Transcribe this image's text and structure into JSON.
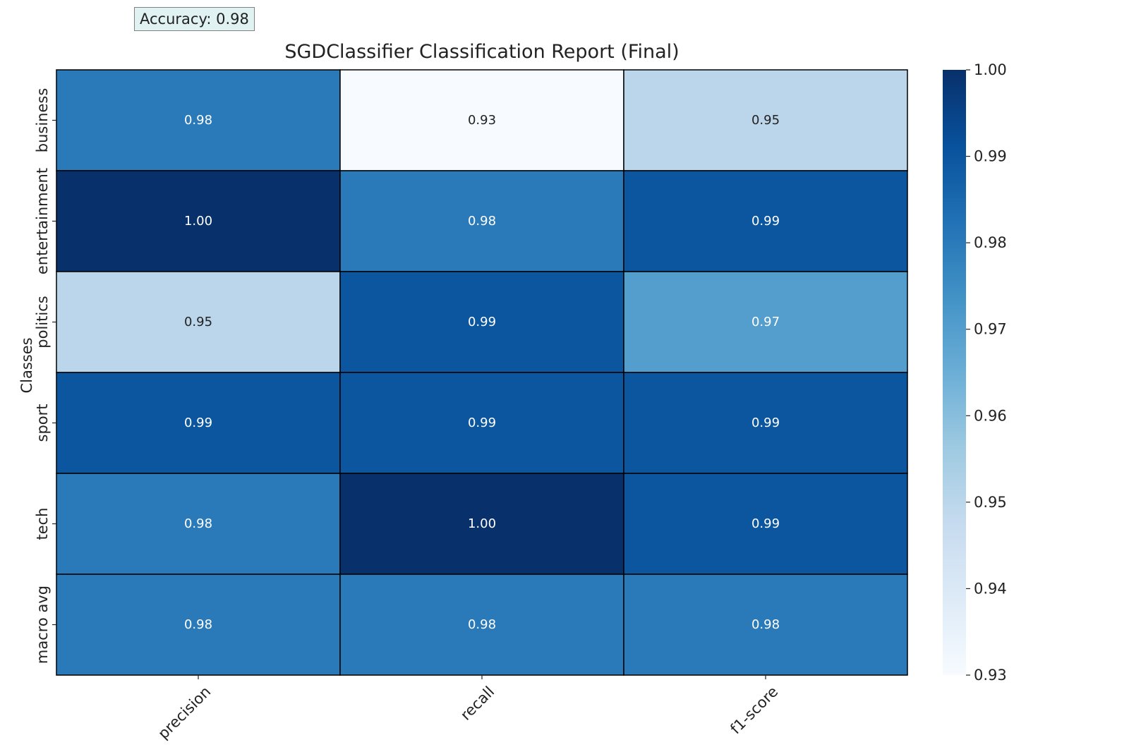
{
  "accuracy_label": "Accuracy: 0.98",
  "chart_data": {
    "type": "heatmap",
    "title": "SGDClassifier Classification Report (Final)",
    "ylabel": "Classes",
    "xlabel": "",
    "x": [
      "precision",
      "recall",
      "f1-score"
    ],
    "y": [
      "business",
      "entertainment",
      "politics",
      "sport",
      "tech",
      "macro avg"
    ],
    "values": [
      [
        0.98,
        0.93,
        0.95
      ],
      [
        1.0,
        0.98,
        0.99
      ],
      [
        0.95,
        0.99,
        0.97
      ],
      [
        0.99,
        0.99,
        0.99
      ],
      [
        0.98,
        1.0,
        0.99
      ],
      [
        0.98,
        0.98,
        0.98
      ]
    ],
    "value_labels": [
      [
        "0.98",
        "0.93",
        "0.95"
      ],
      [
        "1.00",
        "0.98",
        "0.99"
      ],
      [
        "0.95",
        "0.99",
        "0.97"
      ],
      [
        "0.99",
        "0.99",
        "0.99"
      ],
      [
        "0.98",
        "1.00",
        "0.99"
      ],
      [
        "0.98",
        "0.98",
        "0.98"
      ]
    ],
    "colormap": "Blues",
    "colorbar": {
      "range": [
        0.93,
        1.0
      ],
      "ticks": [
        "0.93",
        "0.94",
        "0.95",
        "0.96",
        "0.97",
        "0.98",
        "0.99",
        "1.00"
      ]
    }
  }
}
